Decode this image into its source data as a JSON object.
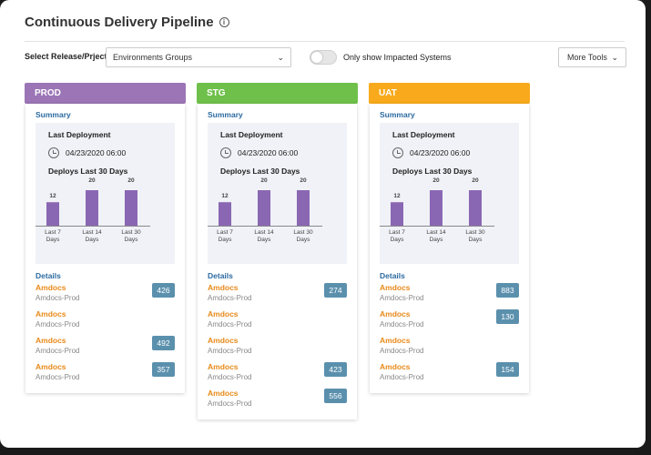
{
  "page": {
    "title": "Continuous Delivery Pipeline"
  },
  "toolbar": {
    "select_label": "Select Release/Prject",
    "select_value": "Environments Groups",
    "toggle_label": "Only show Impacted Systems",
    "more_tools_label": "More Tools"
  },
  "colors": {
    "prod": "#9b75b6",
    "stg": "#6fc04a",
    "uat": "#f8aa1c",
    "bar": "#8a67b3",
    "link": "#2c6aa0",
    "name": "#e88a1a",
    "badge": "#5b90ad"
  },
  "columns": [
    {
      "name": "PROD",
      "summary_label": "Summary",
      "last_deployment_label": "Last Deployment",
      "last_deployment_date": "04/23/2020 06:00",
      "deploys_label": "Deploys Last 30 Days",
      "details_label": "Details",
      "chart_data": {
        "type": "bar",
        "categories": [
          "Last 7 Days",
          "Last 14 Days",
          "Last 30 Days"
        ],
        "values": [
          12,
          20,
          20
        ]
      },
      "items": [
        {
          "name": "Amdocs",
          "sub": "Amdocs-Prod",
          "count": "426"
        },
        {
          "name": "Amdocs",
          "sub": "Amdocs-Prod",
          "count": ""
        },
        {
          "name": "Amdocs",
          "sub": "Amdocs-Prod",
          "count": "492"
        },
        {
          "name": "Amdocs",
          "sub": "Amdocs-Prod",
          "count": "357"
        }
      ]
    },
    {
      "name": "STG",
      "summary_label": "Summary",
      "last_deployment_label": "Last Deployment",
      "last_deployment_date": "04/23/2020 06:00",
      "deploys_label": "Deploys Last 30 Days",
      "details_label": "Details",
      "chart_data": {
        "type": "bar",
        "categories": [
          "Last 7 Days",
          "Last 14 Days",
          "Last 30 Days"
        ],
        "values": [
          12,
          20,
          20
        ]
      },
      "items": [
        {
          "name": "Amdocs",
          "sub": "Amdocs-Prod",
          "count": "274"
        },
        {
          "name": "Amdocs",
          "sub": "Amdocs-Prod",
          "count": ""
        },
        {
          "name": "Amdocs",
          "sub": "Amdocs-Prod",
          "count": ""
        },
        {
          "name": "Amdocs",
          "sub": "Amdocs-Prod",
          "count": "423"
        },
        {
          "name": "Amdocs",
          "sub": "Amdocs-Prod",
          "count": "556"
        }
      ]
    },
    {
      "name": "UAT",
      "summary_label": "Summary",
      "last_deployment_label": "Last Deployment",
      "last_deployment_date": "04/23/2020 06:00",
      "deploys_label": "Deploys Last 30 Days",
      "details_label": "Details",
      "chart_data": {
        "type": "bar",
        "categories": [
          "Last 7 Days",
          "Last 14 Days",
          "Last 30 Days"
        ],
        "values": [
          12,
          20,
          20
        ]
      },
      "items": [
        {
          "name": "Amdocs",
          "sub": "Amdocs-Prod",
          "count": "883"
        },
        {
          "name": "Amdocs",
          "sub": "Amdocs-Prod",
          "count": "130"
        },
        {
          "name": "Amdocs",
          "sub": "Amdocs-Prod",
          "count": ""
        },
        {
          "name": "Amdocs",
          "sub": "Amdocs-Prod",
          "count": "154"
        }
      ]
    }
  ]
}
